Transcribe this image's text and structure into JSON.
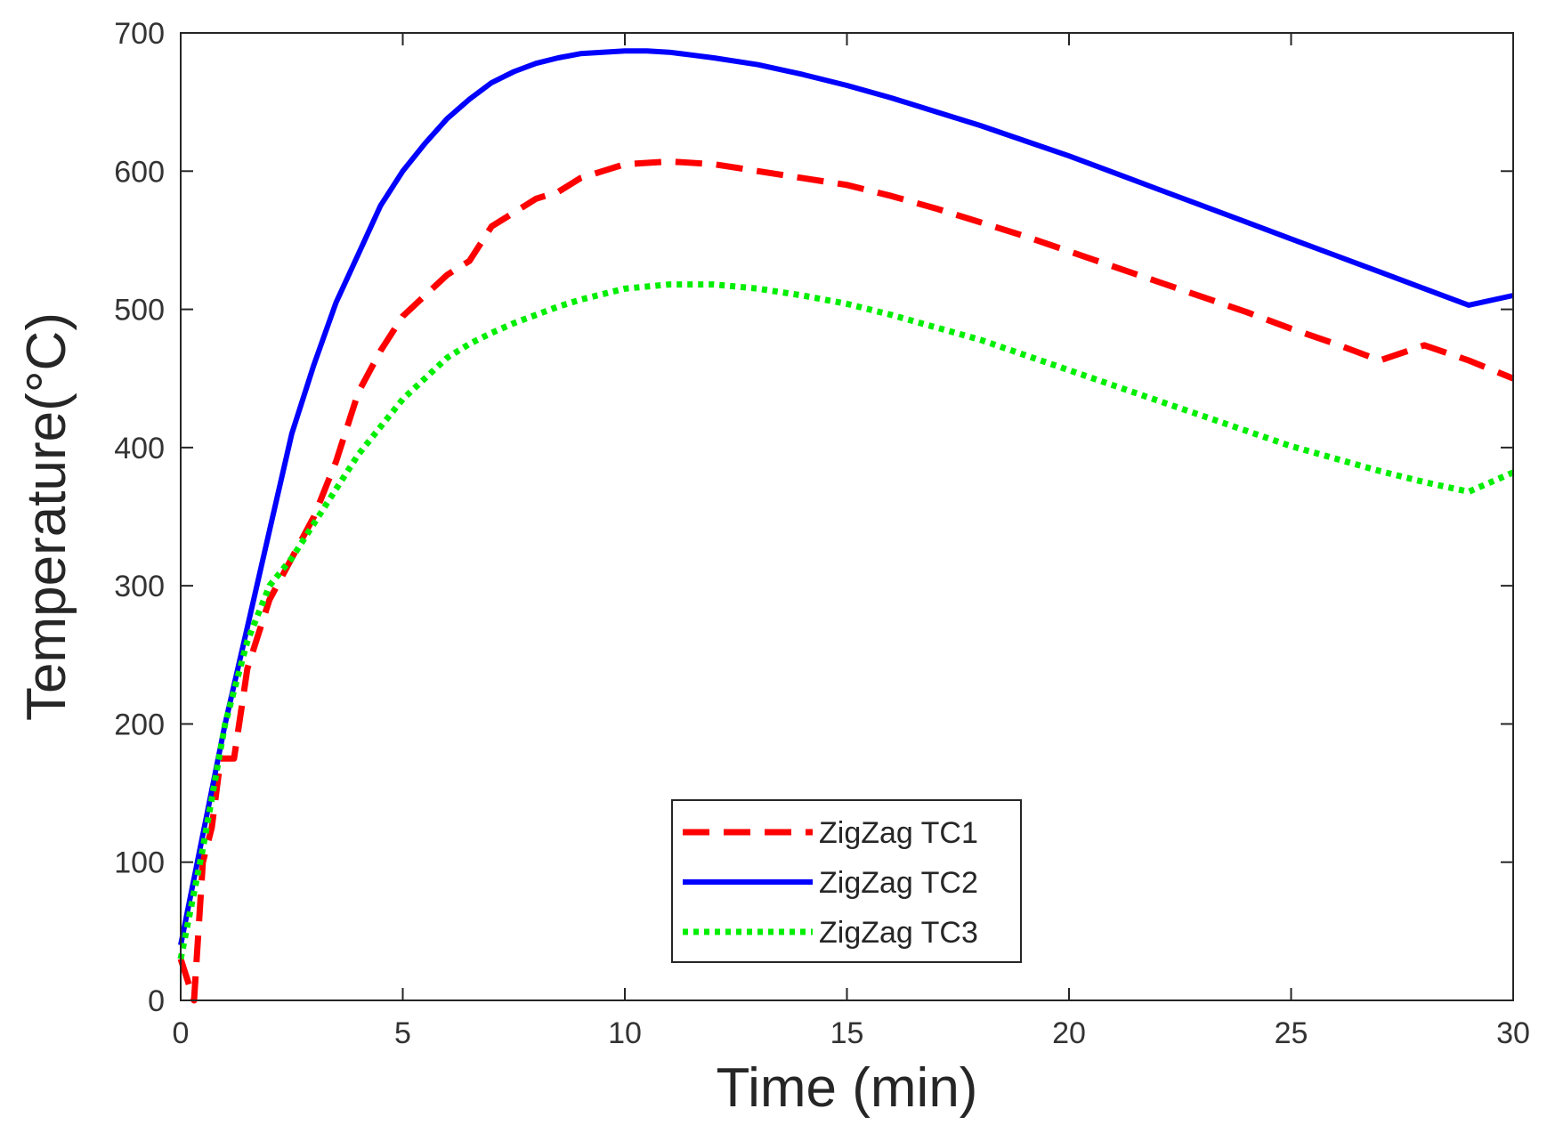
{
  "chart_data": {
    "type": "line",
    "title": "",
    "xlabel": "Time (min)",
    "ylabel": "Temperature(°C)",
    "xlim": [
      0,
      30
    ],
    "ylim": [
      0,
      700
    ],
    "xticks": [
      0,
      5,
      10,
      15,
      20,
      25,
      30
    ],
    "yticks": [
      0,
      100,
      200,
      300,
      400,
      500,
      600,
      700
    ],
    "grid": false,
    "legend_position": "bottom-center",
    "series": [
      {
        "name": "ZigZag TC1",
        "color": "#ff0000",
        "style": "dashed",
        "x": [
          0.0,
          0.1,
          0.2,
          0.3,
          0.5,
          0.7,
          0.9,
          1.2,
          1.5,
          1.8,
          2.0,
          2.5,
          3.0,
          3.5,
          4.0,
          4.5,
          5.0,
          5.5,
          6.0,
          6.5,
          7.0,
          7.5,
          8.0,
          8.5,
          9.0,
          9.5,
          10.0,
          11.0,
          12.0,
          13.0,
          14.0,
          15.0,
          16.0,
          17.0,
          18.0,
          19.0,
          20.0,
          21.0,
          22.0,
          23.0,
          24.0,
          25.0,
          26.0,
          27.0,
          28.0,
          29.0,
          30.0
        ],
        "values": [
          30,
          20,
          10,
          0,
          100,
          125,
          175,
          175,
          240,
          270,
          290,
          320,
          350,
          390,
          440,
          470,
          495,
          510,
          525,
          535,
          560,
          570,
          580,
          585,
          595,
          600,
          605,
          607,
          605,
          600,
          595,
          590,
          582,
          573,
          563,
          553,
          542,
          531,
          520,
          509,
          498,
          486,
          475,
          463,
          474,
          463,
          450
        ]
      },
      {
        "name": "ZigZag TC2",
        "color": "#0000ff",
        "style": "solid",
        "x": [
          0.0,
          0.5,
          1.0,
          1.5,
          2.0,
          2.5,
          3.0,
          3.5,
          4.0,
          4.5,
          5.0,
          5.5,
          6.0,
          6.5,
          7.0,
          7.5,
          8.0,
          8.5,
          9.0,
          9.5,
          10.0,
          10.5,
          11.0,
          11.5,
          12.0,
          13.0,
          14.0,
          15.0,
          16.0,
          17.0,
          18.0,
          19.0,
          20.0,
          21.0,
          22.0,
          23.0,
          24.0,
          25.0,
          26.0,
          27.0,
          28.0,
          29.0,
          30.0
        ],
        "values": [
          40,
          120,
          200,
          270,
          340,
          410,
          460,
          505,
          540,
          575,
          600,
          620,
          638,
          652,
          664,
          672,
          678,
          682,
          685,
          686,
          687,
          687,
          686,
          684,
          682,
          677,
          670,
          662,
          653,
          643,
          633,
          622,
          611,
          599,
          587,
          575,
          563,
          551,
          539,
          527,
          515,
          503,
          510
        ]
      },
      {
        "name": "ZigZag TC3",
        "color": "#00ee00",
        "style": "dotted",
        "x": [
          0.0,
          0.5,
          1.0,
          1.5,
          2.0,
          2.5,
          3.0,
          3.5,
          4.0,
          4.5,
          5.0,
          5.5,
          6.0,
          6.5,
          7.0,
          7.5,
          8.0,
          8.5,
          9.0,
          9.5,
          10.0,
          11.0,
          12.0,
          13.0,
          14.0,
          15.0,
          16.0,
          17.0,
          18.0,
          19.0,
          20.0,
          21.0,
          22.0,
          23.0,
          24.0,
          25.0,
          26.0,
          27.0,
          28.0,
          29.0,
          30.0
        ],
        "values": [
          30,
          110,
          200,
          260,
          300,
          320,
          345,
          370,
          395,
          415,
          435,
          450,
          465,
          475,
          483,
          490,
          496,
          502,
          507,
          511,
          515,
          518,
          518,
          515,
          510,
          504,
          496,
          487,
          478,
          467,
          456,
          445,
          434,
          423,
          412,
          401,
          392,
          383,
          375,
          368,
          382
        ]
      }
    ]
  }
}
